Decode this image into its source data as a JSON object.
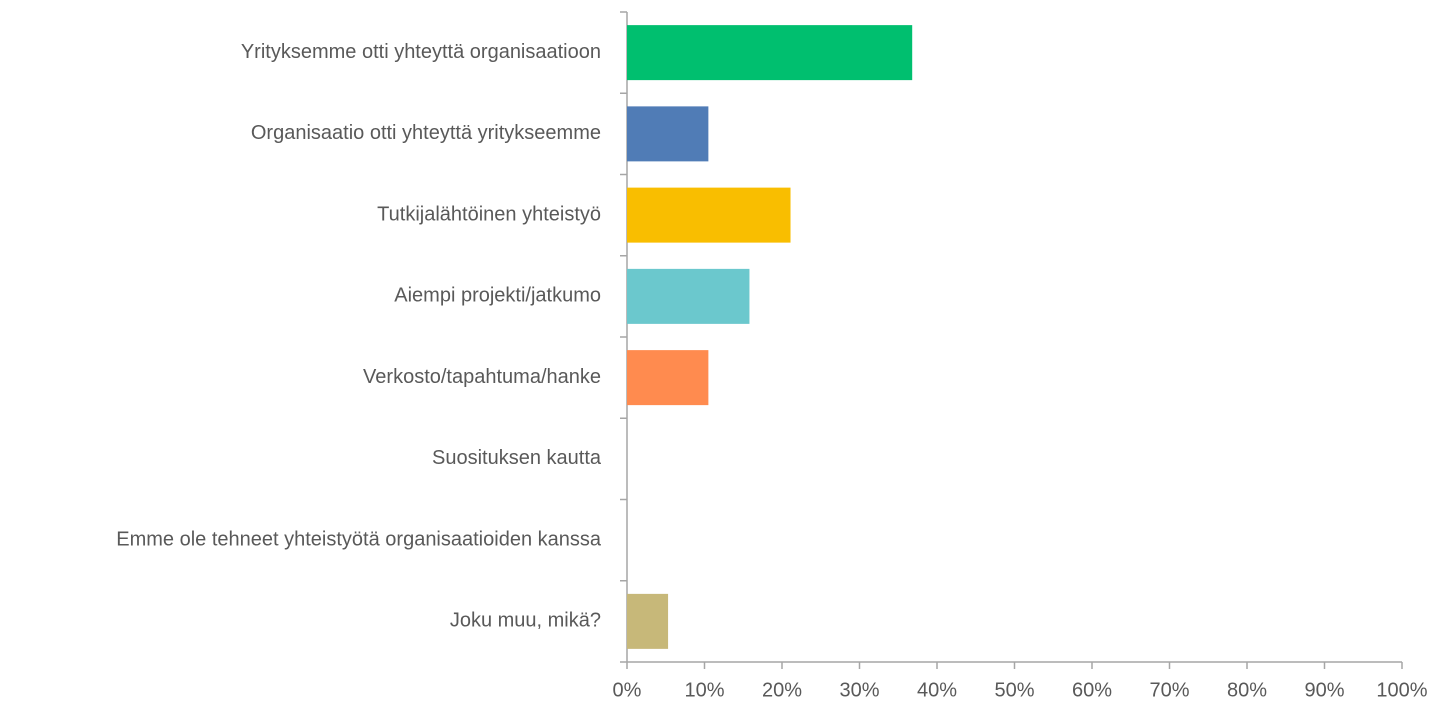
{
  "chart_data": {
    "type": "bar",
    "orientation": "horizontal",
    "categories": [
      "Yrityksemme otti yhteyttä organisaatioon",
      "Organisaatio otti yhteyttä yritykseemme",
      "Tutkijalähtöinen yhteistyö",
      "Aiempi projekti/jatkumo",
      "Verkosto/tapahtuma/hanke",
      "Suosituksen kautta",
      "Emme ole tehneet yhteistyötä organisaatioiden kanssa",
      "Joku muu, mikä?"
    ],
    "values": [
      36.8,
      10.5,
      21.1,
      15.8,
      10.5,
      0,
      0,
      5.3
    ],
    "colors": [
      "#00bf6f",
      "#507cb6",
      "#f9be00",
      "#6bc8cd",
      "#ff8b4f",
      "#7d5ba6",
      "#dd5e93",
      "#c7b879"
    ],
    "xlim": [
      0,
      100
    ],
    "xticks": [
      {
        "value": 0,
        "label": "0%"
      },
      {
        "value": 10,
        "label": "10%"
      },
      {
        "value": 20,
        "label": "20%"
      },
      {
        "value": 30,
        "label": "30%"
      },
      {
        "value": 40,
        "label": "40%"
      },
      {
        "value": 50,
        "label": "50%"
      },
      {
        "value": 60,
        "label": "60%"
      },
      {
        "value": 70,
        "label": "70%"
      },
      {
        "value": 80,
        "label": "80%"
      },
      {
        "value": 90,
        "label": "90%"
      },
      {
        "value": 100,
        "label": "100%"
      }
    ],
    "grid": false
  }
}
